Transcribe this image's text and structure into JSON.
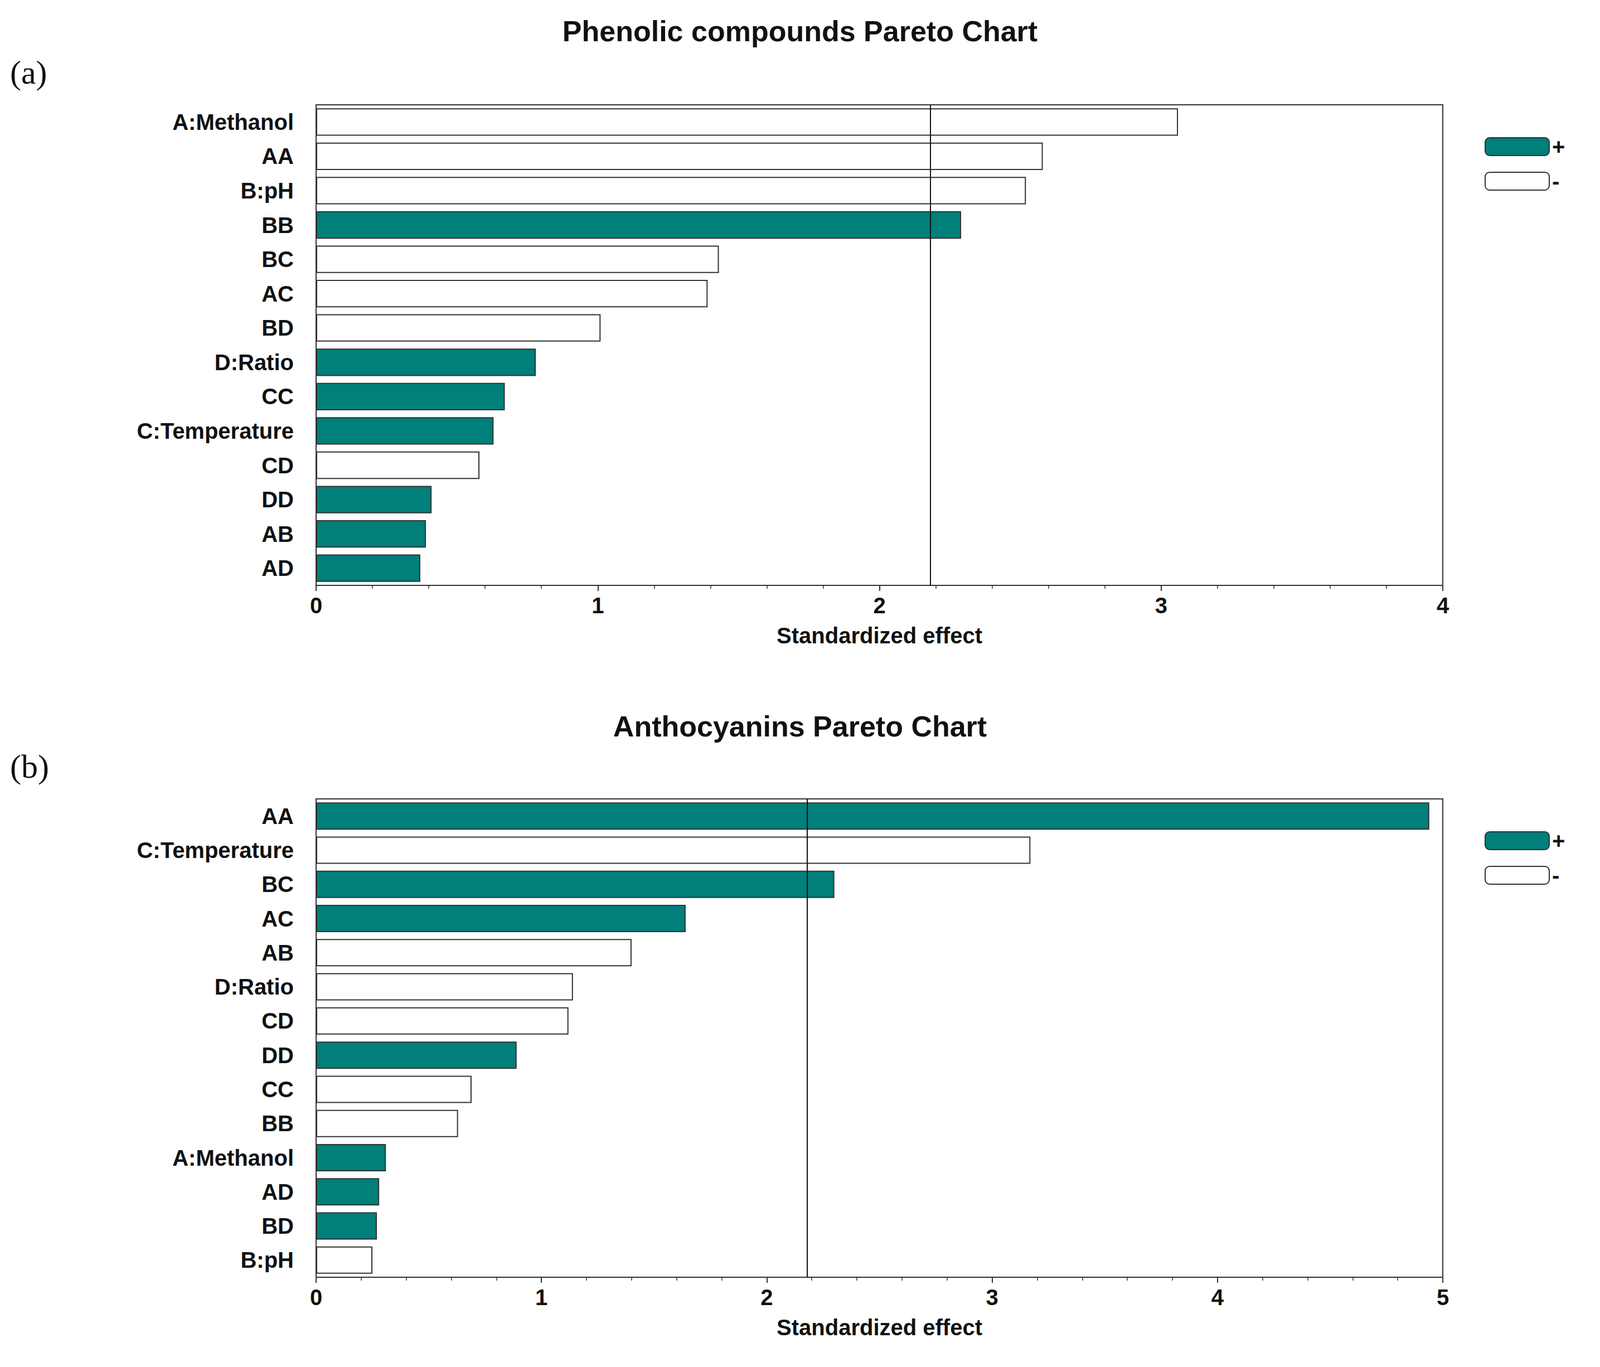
{
  "chart_data": [
    {
      "type": "bar",
      "orientation": "horizontal",
      "title": "Phenolic compounds Pareto Chart",
      "annotations": [
        "(a)"
      ],
      "xlabel": "Standardized effect",
      "categories": [
        "A:Methanol",
        "AA",
        "B:pH",
        "BB",
        "BC",
        "AC",
        "BD",
        "D:Ratio",
        "CC",
        "C:Temperature",
        "CD",
        "DD",
        "AB",
        "AD"
      ],
      "series": [
        {
          "name": "+",
          "color": "#007f7b",
          "values": [
            null,
            null,
            null,
            2.29,
            null,
            null,
            null,
            0.78,
            0.67,
            0.63,
            null,
            0.41,
            0.39,
            0.37
          ]
        },
        {
          "name": "-",
          "color": "#ffffff",
          "values": [
            3.06,
            2.58,
            2.52,
            null,
            1.43,
            1.39,
            1.01,
            null,
            null,
            null,
            0.58,
            null,
            null,
            null
          ]
        }
      ],
      "threshold": 2.18,
      "xlim": [
        0,
        4
      ],
      "xticks": [
        0,
        1,
        2,
        3,
        4
      ],
      "grid": false,
      "legend": "upper right"
    },
    {
      "type": "bar",
      "orientation": "horizontal",
      "title": "Anthocyanins Pareto Chart",
      "annotations": [
        "(b)"
      ],
      "xlabel": "Standardized effect",
      "categories": [
        "AA",
        "C:Temperature",
        "BC",
        "AC",
        "AB",
        "D:Ratio",
        "CD",
        "DD",
        "CC",
        "BB",
        "A:Methanol",
        "AD",
        "BD",
        "B:pH"
      ],
      "series": [
        {
          "name": "+",
          "color": "#007f7b",
          "values": [
            4.94,
            null,
            2.3,
            1.64,
            null,
            null,
            null,
            0.89,
            null,
            null,
            0.31,
            0.28,
            0.27,
            null
          ]
        },
        {
          "name": "-",
          "color": "#ffffff",
          "values": [
            null,
            3.17,
            null,
            null,
            1.4,
            1.14,
            1.12,
            null,
            0.69,
            0.63,
            null,
            null,
            null,
            0.25
          ]
        }
      ],
      "threshold": 2.18,
      "xlim": [
        0,
        5
      ],
      "xticks": [
        0,
        1,
        2,
        3,
        4,
        5
      ],
      "grid": false,
      "legend": "upper right"
    }
  ]
}
